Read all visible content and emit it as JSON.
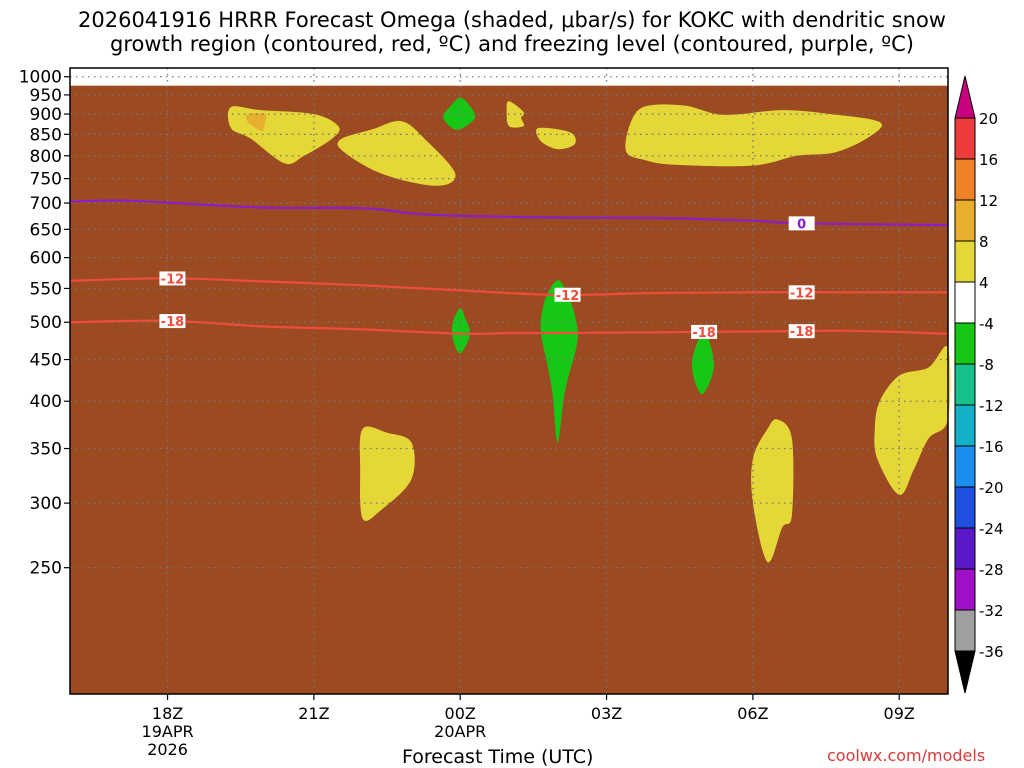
{
  "title": {
    "line1": "2026041916 HRRR Forecast Omega (shaded, μbar/s) for KOKC with dendritic snow",
    "line2": "growth region (contoured, red, ºC) and freezing level (contoured, purple, ºC)"
  },
  "footer": {
    "xlabel": "Forecast Time (UTC)",
    "credit": "coolwx.com/models"
  },
  "chart_data": {
    "type": "time-height cross-section",
    "x_unit": "hours after 2026-04-19 16Z",
    "xlim": [
      0,
      18
    ],
    "y_unit": "hPa",
    "ylim": [
      1025,
      175
    ],
    "y_ticks": [
      250,
      300,
      350,
      400,
      450,
      500,
      550,
      600,
      650,
      700,
      750,
      800,
      850,
      900,
      950,
      1000
    ],
    "x_ticks": [
      {
        "h": 2,
        "label": "18Z",
        "sub": [
          "19APR",
          "2026"
        ]
      },
      {
        "h": 5,
        "label": "21Z",
        "sub": []
      },
      {
        "h": 8,
        "label": "00Z",
        "sub": [
          "20APR"
        ]
      },
      {
        "h": 11,
        "label": "03Z",
        "sub": []
      },
      {
        "h": 14,
        "label": "06Z",
        "sub": []
      },
      {
        "h": 17,
        "label": "09Z",
        "sub": []
      }
    ],
    "colors": {
      "dgz": "#ee4d3d",
      "freezing": "#8a1ec8",
      "ground": "#9b4a22",
      "grid": "#777777"
    },
    "ground": {
      "p_top": 975
    },
    "dgz_contours": [
      {
        "label": "-18",
        "label_at": [
          2.1,
          13.0,
          15.0
        ],
        "points": [
          [
            0,
            500
          ],
          [
            2,
            502
          ],
          [
            4,
            494
          ],
          [
            6,
            490
          ],
          [
            8,
            484
          ],
          [
            9,
            485
          ],
          [
            10,
            485
          ],
          [
            12,
            486
          ],
          [
            14,
            487
          ],
          [
            16,
            488
          ],
          [
            18,
            484
          ]
        ]
      },
      {
        "label": "-12",
        "label_at": [
          2.1,
          10.2,
          15.0
        ],
        "points": [
          [
            0,
            562
          ],
          [
            2,
            566
          ],
          [
            4,
            561
          ],
          [
            6,
            555
          ],
          [
            8,
            547
          ],
          [
            10,
            540
          ],
          [
            12,
            543
          ],
          [
            14,
            544
          ],
          [
            16,
            544
          ],
          [
            18,
            544
          ]
        ]
      }
    ],
    "freezing_contours": [
      {
        "label": "0",
        "label_at": [
          15.0
        ],
        "points": [
          [
            0,
            703
          ],
          [
            1,
            705
          ],
          [
            2,
            701
          ],
          [
            4,
            691
          ],
          [
            6,
            690
          ],
          [
            7,
            680
          ],
          [
            8,
            675
          ],
          [
            10,
            672
          ],
          [
            12,
            671
          ],
          [
            14,
            666
          ],
          [
            15,
            661
          ],
          [
            18,
            658
          ]
        ]
      }
    ],
    "omega_regions": [
      {
        "value": 4,
        "points": [
          [
            6.0,
            287
          ],
          [
            6.4,
            295
          ],
          [
            7.0,
            321
          ],
          [
            7.0,
            356
          ],
          [
            6.5,
            366
          ],
          [
            6.0,
            370
          ],
          [
            5.95,
            330
          ]
        ]
      },
      {
        "value": 4,
        "points": [
          [
            14.3,
            254
          ],
          [
            14.6,
            280
          ],
          [
            14.8,
            290
          ],
          [
            14.8,
            360
          ],
          [
            14.5,
            380
          ],
          [
            14.3,
            370
          ],
          [
            14.0,
            340
          ],
          [
            14.0,
            300
          ]
        ]
      },
      {
        "value": 4,
        "points": [
          [
            17.0,
            307
          ],
          [
            17.3,
            330
          ],
          [
            17.6,
            360
          ],
          [
            18.0,
            380
          ],
          [
            18.0,
            465
          ],
          [
            17.6,
            440
          ],
          [
            17.0,
            430
          ],
          [
            16.6,
            400
          ],
          [
            16.5,
            370
          ],
          [
            16.55,
            340
          ]
        ]
      },
      {
        "value": 4,
        "points": [
          [
            3.3,
            865
          ],
          [
            3.7,
            840
          ],
          [
            4.4,
            783
          ],
          [
            4.8,
            800
          ],
          [
            5.4,
            842
          ],
          [
            5.5,
            870
          ],
          [
            5.0,
            900
          ],
          [
            3.9,
            910
          ],
          [
            3.3,
            918
          ]
        ]
      },
      {
        "value": 8,
        "points": [
          [
            3.93,
            858
          ],
          [
            4.0,
            880
          ],
          [
            4.0,
            900
          ],
          [
            3.65,
            900
          ],
          [
            3.65,
            880
          ]
        ]
      },
      {
        "value": 4,
        "points": [
          [
            5.6,
            810
          ],
          [
            6.4,
            760
          ],
          [
            7.5,
            735
          ],
          [
            7.9,
            760
          ],
          [
            7.3,
            836
          ],
          [
            6.8,
            882
          ],
          [
            6.2,
            862
          ],
          [
            5.55,
            838
          ]
        ]
      },
      {
        "value": 4,
        "points": [
          [
            9.0,
            870
          ],
          [
            9.3,
            870
          ],
          [
            9.25,
            890
          ],
          [
            9.3,
            905
          ],
          [
            9.0,
            933
          ],
          [
            8.95,
            910
          ]
        ]
      },
      {
        "value": 4,
        "points": [
          [
            9.65,
            834
          ],
          [
            10.0,
            815
          ],
          [
            10.35,
            827
          ],
          [
            10.25,
            855
          ],
          [
            9.6,
            865
          ]
        ]
      },
      {
        "value": 4,
        "points": [
          [
            11.4,
            810
          ],
          [
            11.8,
            790
          ],
          [
            12.4,
            780
          ],
          [
            14.0,
            778
          ],
          [
            14.9,
            800
          ],
          [
            15.7,
            808
          ],
          [
            16.4,
            845
          ],
          [
            16.6,
            880
          ],
          [
            15.6,
            900
          ],
          [
            14.6,
            910
          ],
          [
            13.4,
            898
          ],
          [
            12.6,
            922
          ],
          [
            11.8,
            920
          ],
          [
            11.5,
            880
          ]
        ]
      },
      {
        "value": -8,
        "points": [
          [
            8.0,
            458
          ],
          [
            8.2,
            483
          ],
          [
            8.1,
            506
          ],
          [
            8.0,
            520
          ],
          [
            7.85,
            500
          ],
          [
            7.85,
            478
          ]
        ]
      },
      {
        "value": -8,
        "points": [
          [
            10.0,
            356
          ],
          [
            10.15,
            412
          ],
          [
            10.4,
            473
          ],
          [
            10.35,
            510
          ],
          [
            10.2,
            540
          ],
          [
            10.0,
            563
          ],
          [
            9.75,
            535
          ],
          [
            9.65,
            490
          ],
          [
            9.8,
            440
          ],
          [
            9.9,
            405
          ]
        ]
      },
      {
        "value": -8,
        "points": [
          [
            12.95,
            408
          ],
          [
            13.2,
            442
          ],
          [
            13.0,
            486
          ],
          [
            12.75,
            445
          ]
        ]
      },
      {
        "value": -8,
        "points": [
          [
            8.0,
            862
          ],
          [
            8.3,
            890
          ],
          [
            8.2,
            920
          ],
          [
            8.0,
            943
          ],
          [
            7.8,
            920
          ],
          [
            7.65,
            893
          ],
          [
            7.8,
            868
          ]
        ]
      }
    ],
    "colorbar": {
      "bins": [
        {
          "color": "#c8007e",
          "label": "20"
        },
        {
          "color": "#ee3b3b",
          "label": "16"
        },
        {
          "color": "#ef8126",
          "label": "12"
        },
        {
          "color": "#e7af2d",
          "label": "8"
        },
        {
          "color": "#e4d737",
          "label": "4"
        },
        {
          "color": "#ffffff",
          "label": "-4"
        },
        {
          "color": "#16c815",
          "label": "-8"
        },
        {
          "color": "#17c08b",
          "label": "-12"
        },
        {
          "color": "#12b1c8",
          "label": "-16"
        },
        {
          "color": "#1a8ff0",
          "label": "-20"
        },
        {
          "color": "#2050e0",
          "label": "-24"
        },
        {
          "color": "#5a18c8",
          "label": "-28"
        },
        {
          "color": "#a010c8",
          "label": "-32"
        },
        {
          "color": "#a0a0a0",
          "label": "-36"
        },
        {
          "color": "#000000",
          "label": ""
        }
      ]
    }
  }
}
